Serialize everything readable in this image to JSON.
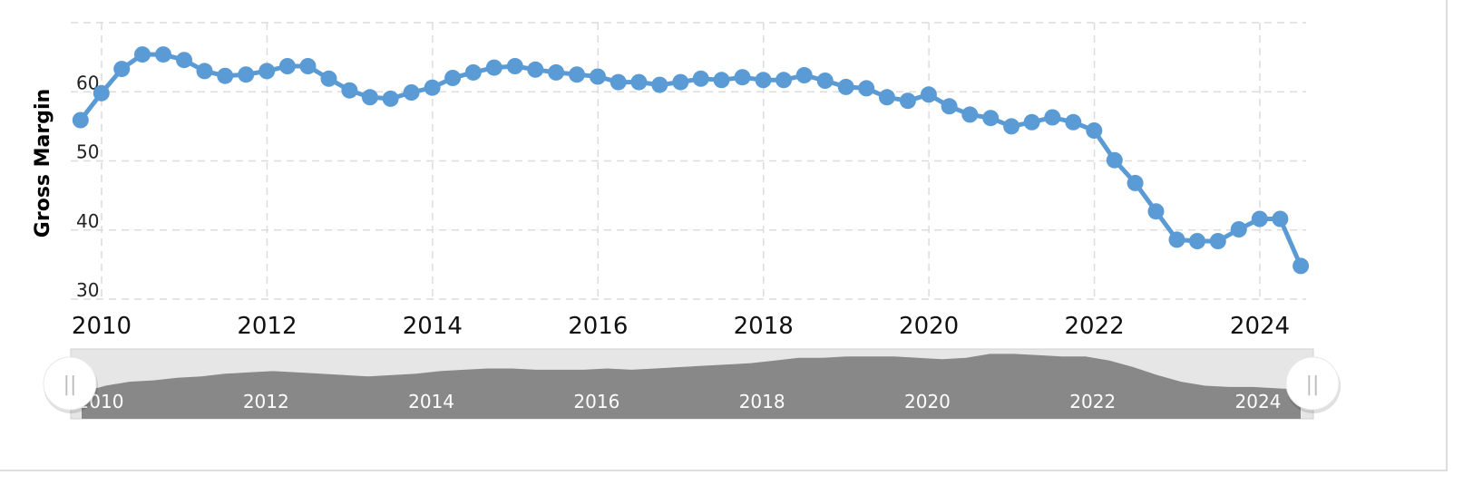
{
  "chart_data": {
    "type": "line",
    "title": "",
    "xlabel": "",
    "ylabel": "Gross Margin",
    "x_range": [
      "2009-09-30",
      "2024-06-30"
    ],
    "ylim": [
      30,
      70
    ],
    "y_ticks": [
      30,
      40,
      50,
      60
    ],
    "x_ticks": [
      "2010",
      "2012",
      "2014",
      "2016",
      "2018",
      "2020",
      "2022",
      "2024"
    ],
    "grid": true,
    "line_color": "#5b9bd5",
    "series": [
      {
        "x": [
          "2009-09-30",
          "2009-12-31",
          "2010-03-31",
          "2010-06-30",
          "2010-09-30",
          "2010-12-31",
          "2011-03-31",
          "2011-06-30",
          "2011-09-30",
          "2011-12-31",
          "2012-03-31",
          "2012-06-30",
          "2012-09-30",
          "2012-12-31",
          "2013-03-31",
          "2013-06-30",
          "2013-09-30",
          "2013-12-31",
          "2014-03-31",
          "2014-06-30",
          "2014-09-30",
          "2014-12-31",
          "2015-03-31",
          "2015-06-30",
          "2015-09-30",
          "2015-12-31",
          "2016-03-31",
          "2016-06-30",
          "2016-09-30",
          "2016-12-31",
          "2017-03-31",
          "2017-06-30",
          "2017-09-30",
          "2017-12-31",
          "2018-03-31",
          "2018-06-30",
          "2018-09-30",
          "2018-12-31",
          "2019-03-31",
          "2019-06-30",
          "2019-09-30",
          "2019-12-31",
          "2020-03-31",
          "2020-06-30",
          "2020-09-30",
          "2020-12-31",
          "2021-03-31",
          "2021-06-30",
          "2021-09-30",
          "2021-12-31",
          "2022-03-31",
          "2022-06-30",
          "2022-09-30",
          "2022-12-31",
          "2023-03-31",
          "2023-06-30",
          "2023-09-30",
          "2023-12-31",
          "2024-03-31",
          "2024-06-30"
        ],
        "values": [
          55.9,
          59.8,
          63.3,
          65.4,
          65.4,
          64.6,
          63.0,
          62.3,
          62.5,
          63.0,
          63.7,
          63.7,
          61.9,
          60.2,
          59.2,
          59.0,
          59.9,
          60.6,
          62.0,
          62.8,
          63.5,
          63.7,
          63.2,
          62.8,
          62.5,
          62.2,
          61.4,
          61.4,
          61.0,
          61.4,
          61.9,
          61.7,
          62.1,
          61.7,
          61.7,
          62.4,
          61.6,
          60.7,
          60.5,
          59.2,
          58.7,
          59.6,
          57.9,
          56.7,
          56.2,
          55.0,
          55.6,
          56.3,
          55.6,
          54.4,
          50.1,
          46.8,
          42.7,
          38.6,
          38.4,
          38.4,
          40.1,
          41.6,
          41.6,
          34.8
        ]
      }
    ]
  },
  "navigator": {
    "ticks": [
      "2010",
      "2012",
      "2014",
      "2016",
      "2018",
      "2020",
      "2022",
      "2024"
    ],
    "handle_glyph": "||",
    "values": [
      20,
      25,
      28,
      29,
      31,
      32,
      34,
      35,
      36,
      35,
      34,
      33,
      32,
      33,
      34,
      36,
      37,
      38,
      38,
      37,
      37,
      37,
      38,
      37,
      38,
      39,
      40,
      41,
      42,
      44,
      46,
      46,
      47,
      47,
      47,
      46,
      45,
      46,
      49,
      49,
      48,
      47,
      47,
      44,
      39,
      33,
      28,
      25,
      24,
      24,
      23,
      22
    ]
  }
}
